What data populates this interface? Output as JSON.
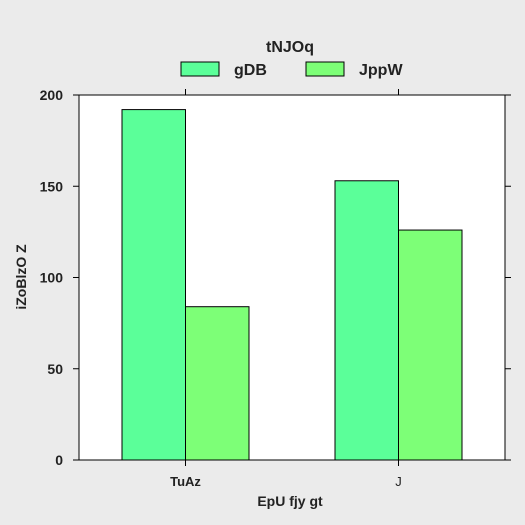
{
  "chart_data": {
    "type": "bar",
    "title": "",
    "xlabel": "EpU fjy gt",
    "ylabel": "iZoBlzO Z",
    "legend_title": "tNJOq",
    "legend_position": "top",
    "categories": [
      "TuAz",
      "J"
    ],
    "series": [
      {
        "name": "gDB",
        "values": [
          192,
          153
        ],
        "color": "#5bff99"
      },
      {
        "name": "JppW",
        "values": [
          84,
          126
        ],
        "color": "#7dff77"
      }
    ],
    "ylim": [
      0,
      200
    ],
    "yticks": [
      0,
      50,
      100,
      150,
      200
    ],
    "grid": false
  }
}
